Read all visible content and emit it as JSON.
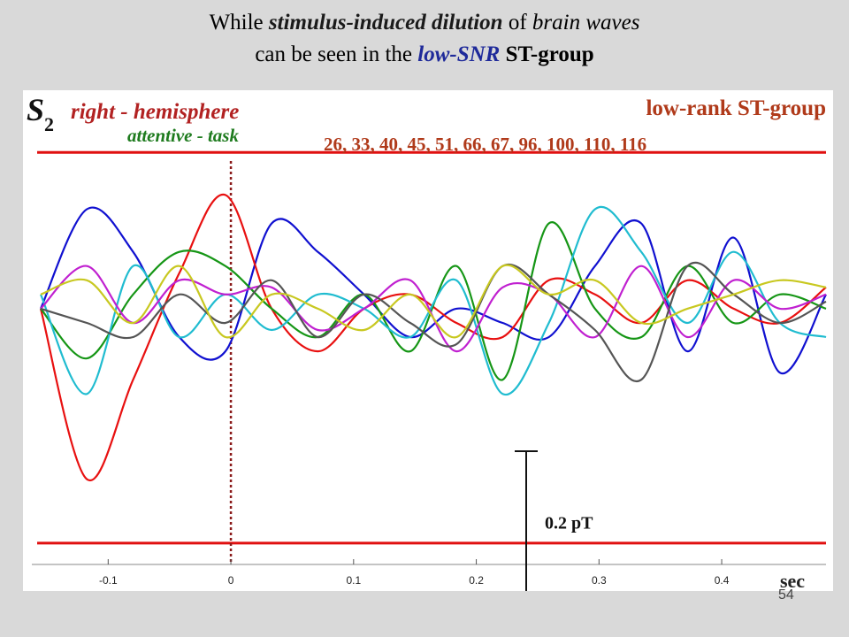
{
  "title": {
    "line1": [
      "While ",
      "stimulus-induced dilution",
      " of ",
      "brain waves"
    ],
    "line2": [
      "can be seen in the ",
      "low-SNR",
      " ST-group"
    ]
  },
  "page_number": "54",
  "chart_data": {
    "type": "line",
    "panel_label": {
      "s": "S",
      "sub": "2"
    },
    "hemisphere": "right - hemisphere",
    "task": "attentive - task",
    "group": "low-rank ST-group",
    "subject_ids": "26, 33, 40, 45, 51, 66, 67, 96, 100, 110, 116",
    "xlabel": "sec",
    "xlim": [
      -0.155,
      0.485
    ],
    "ylim": [
      -0.36,
      0.3
    ],
    "xticks": [
      -0.1,
      0,
      0.1,
      0.2,
      0.3,
      0.4
    ],
    "xtick_labels": [
      "-0.1",
      "0",
      "0.1",
      "0.2",
      "0.3",
      "0.4"
    ],
    "band_limits": [
      0.22,
      -0.33
    ],
    "stimulus_onset": 0,
    "scale_bar": {
      "value": 0.2,
      "label": "0.2 pT"
    },
    "colors": {
      "band": "#e01010",
      "onset": "#8b1a1a",
      "hemisphere": "#b22222",
      "task": "#1e7b1e",
      "group": "#b03a1a",
      "ids": "#b03a1a"
    },
    "series": [
      {
        "color": "#1010d0",
        "values": [
          0.0,
          0.14,
          0.08,
          -0.04,
          -0.06,
          0.12,
          0.08,
          0.02,
          -0.04,
          0.0,
          -0.02,
          -0.04,
          0.06,
          0.12,
          -0.06,
          0.1,
          -0.09,
          0.02
        ]
      },
      {
        "color": "#e81010",
        "values": [
          0.0,
          -0.24,
          -0.1,
          0.05,
          0.16,
          0.0,
          -0.06,
          0.0,
          0.02,
          -0.02,
          -0.04,
          0.04,
          0.02,
          -0.02,
          0.04,
          0.0,
          -0.02,
          0.03
        ]
      },
      {
        "color": "#169616",
        "values": [
          0.0,
          -0.07,
          0.02,
          0.08,
          0.06,
          0.0,
          -0.04,
          0.02,
          -0.06,
          0.06,
          -0.1,
          0.12,
          0.0,
          -0.04,
          0.06,
          -0.02,
          0.02,
          0.0
        ]
      },
      {
        "color": "#20bcd0",
        "values": [
          0.02,
          -0.12,
          0.06,
          -0.04,
          0.02,
          -0.03,
          0.02,
          0.0,
          -0.04,
          0.04,
          -0.12,
          -0.02,
          0.14,
          0.08,
          -0.02,
          0.08,
          -0.02,
          -0.04
        ]
      },
      {
        "color": "#c020d0",
        "values": [
          0.0,
          0.06,
          -0.02,
          0.04,
          0.02,
          0.03,
          -0.03,
          0.0,
          0.04,
          -0.06,
          0.03,
          0.02,
          -0.04,
          0.06,
          -0.04,
          0.04,
          0.0,
          0.02
        ]
      },
      {
        "color": "#555555",
        "values": [
          0.0,
          -0.02,
          -0.04,
          0.02,
          -0.02,
          0.04,
          -0.04,
          0.02,
          -0.02,
          -0.05,
          0.06,
          0.02,
          -0.03,
          -0.1,
          0.06,
          0.02,
          -0.02,
          0.01
        ]
      },
      {
        "color": "#c8c820",
        "values": [
          0.02,
          0.04,
          -0.02,
          0.06,
          -0.04,
          0.02,
          0.0,
          -0.03,
          0.02,
          -0.04,
          0.06,
          0.02,
          0.04,
          -0.02,
          0.0,
          0.02,
          0.04,
          0.03
        ]
      }
    ]
  }
}
